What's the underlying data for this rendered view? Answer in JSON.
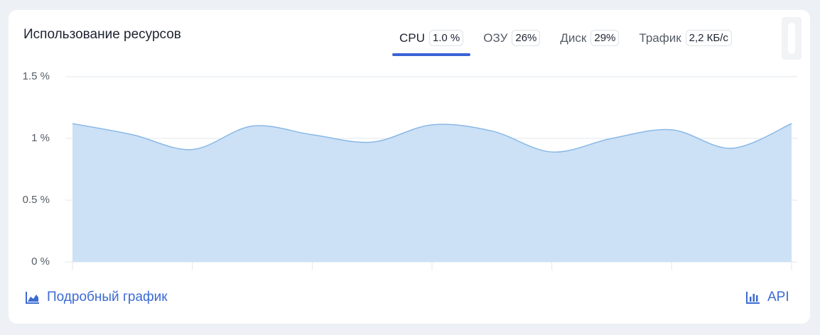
{
  "header": {
    "title": "Использование ресурсов"
  },
  "tabs": [
    {
      "label": "CPU",
      "value": "1.0 %"
    },
    {
      "label": "ОЗУ",
      "value": "26%"
    },
    {
      "label": "Диск",
      "value": "29%"
    },
    {
      "label": "Трафик",
      "value": "2,2 КБ/с"
    }
  ],
  "chart_data": {
    "type": "area",
    "categories": [
      null,
      null,
      null,
      null,
      null,
      null,
      null,
      null,
      null,
      null,
      null,
      null,
      null
    ],
    "series": [
      {
        "color": "#8ab8e6",
        "values": [
          1.12,
          1.03,
          0.91,
          1.1,
          1.03,
          0.97,
          1.11,
          1.06,
          0.89,
          1.0,
          1.07,
          0.92,
          1.12
        ]
      }
    ],
    "ylim": [
      0,
      1.5
    ],
    "yticks": [
      {
        "value": 0,
        "label": "0 %"
      },
      {
        "value": 0.5,
        "label": "0.5 %"
      },
      {
        "value": 1,
        "label": "1 %"
      },
      {
        "value": 1.5,
        "label": "1.5 %"
      }
    ],
    "grid": true
  },
  "footer": {
    "details": "Подробный график",
    "api": "API"
  }
}
